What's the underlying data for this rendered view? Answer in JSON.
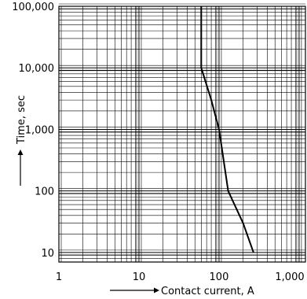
{
  "chart_data": {
    "type": "line",
    "xscale": "log",
    "yscale": "log",
    "xlim": [
      1,
      1200
    ],
    "ylim": [
      7,
      100000
    ],
    "x_ticks": [
      1,
      10,
      100,
      1000
    ],
    "x_tick_labels": [
      "1",
      "10",
      "100",
      "1,000"
    ],
    "y_ticks": [
      10,
      100,
      1000,
      10000,
      100000
    ],
    "y_tick_labels": [
      "10",
      "100",
      "1,000",
      "10,000",
      "100,000"
    ],
    "xlabel": "Contact current, A",
    "ylabel": "Time, sec",
    "grid": true,
    "series": [
      {
        "x": [
          60,
          60,
          60,
          60,
          80,
          100,
          130,
          200,
          270
        ],
        "y": [
          100000,
          50000,
          20000,
          10000,
          3000,
          1000,
          100,
          30,
          10
        ]
      }
    ]
  }
}
